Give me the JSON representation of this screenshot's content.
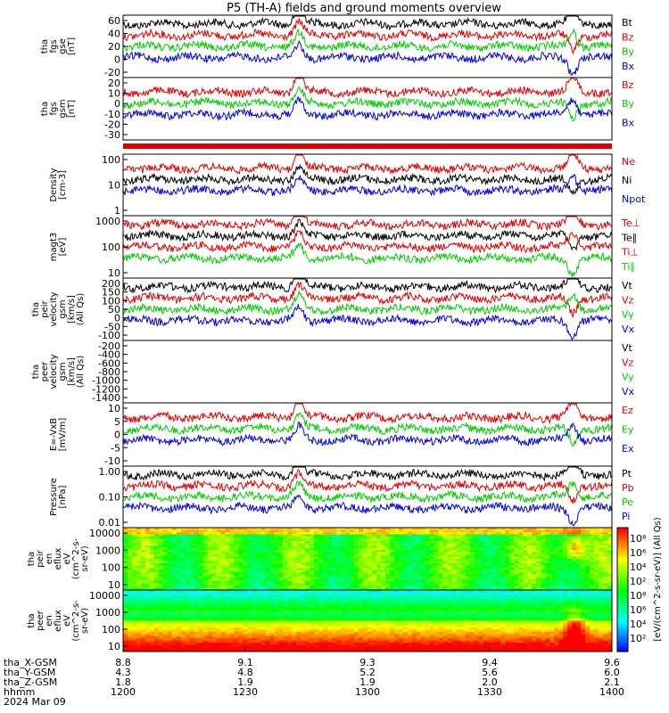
{
  "title": "P5 (TH-A) fields and ground moments overview",
  "colors": {
    "black": "#000000",
    "red": "#e00000",
    "green": "#00cc00",
    "blue": "#0000e0"
  },
  "panels": [
    {
      "name": "fgs-gse",
      "ylabel": [
        "tha",
        "fgs",
        "gse",
        "[nT]"
      ],
      "yticks": [
        "60",
        "40",
        "20",
        "0",
        "-20"
      ],
      "ylim": [
        -25,
        75
      ],
      "legend": [
        {
          "text": "Bt",
          "color": "black"
        },
        {
          "text": "Bz",
          "color": "red"
        },
        {
          "text": "By",
          "color": "green"
        },
        {
          "text": "Bx",
          "color": "blue"
        }
      ]
    },
    {
      "name": "fgs-gsm",
      "ylabel": [
        "tha",
        "fgs",
        "gsm",
        "[nT]"
      ],
      "yticks": [
        "20",
        "10",
        "0",
        "-10",
        "-20",
        "-30"
      ],
      "ylim": [
        -35,
        30
      ],
      "legend": [
        {
          "text": "Bz",
          "color": "red"
        },
        {
          "text": "By",
          "color": "green"
        },
        {
          "text": "Bx",
          "color": "blue"
        }
      ]
    },
    {
      "name": "density",
      "ylabel": [
        "Density",
        "[cm-3]"
      ],
      "yticks": [
        "100",
        "10",
        "1"
      ],
      "scale": "log",
      "legend": [
        {
          "text": "Ne",
          "color": "red"
        },
        {
          "text": "Ni",
          "color": "black"
        },
        {
          "text": "Npot",
          "color": "blue"
        }
      ]
    },
    {
      "name": "temperature",
      "ylabel": [
        "magt3",
        "[eV]"
      ],
      "yticks": [
        "1000",
        "100",
        "10"
      ],
      "scale": "log",
      "legend": [
        {
          "text": "Te⊥",
          "color": "red"
        },
        {
          "text": "Te∥",
          "color": "black"
        },
        {
          "text": "Ti⊥",
          "color": "red"
        },
        {
          "text": "Ti∥",
          "color": "green"
        }
      ]
    },
    {
      "name": "peir-velocity",
      "ylabel": [
        "tha",
        "peir",
        "velocity",
        "gsm",
        "[km/s]",
        "(All Qs)"
      ],
      "yticks": [
        "200",
        "150",
        "100",
        "50",
        "0",
        "-50",
        "-100"
      ],
      "ylim": [
        -120,
        200
      ],
      "legend": [
        {
          "text": "Vt",
          "color": "black"
        },
        {
          "text": "Vz",
          "color": "red"
        },
        {
          "text": "Vy",
          "color": "green"
        },
        {
          "text": "Vx",
          "color": "blue"
        }
      ]
    },
    {
      "name": "peer-velocity",
      "ylabel": [
        "tha",
        "peer",
        "velocity",
        "gsm",
        "[km/s]",
        "(All Qs)"
      ],
      "yticks": [
        "-200",
        "-400",
        "-600",
        "-800",
        "-1000",
        "-1200",
        "-1400"
      ],
      "ylim": [
        -1500,
        0
      ],
      "legend": [
        {
          "text": "Vt",
          "color": "black"
        },
        {
          "text": "Vz",
          "color": "red"
        },
        {
          "text": "Vy",
          "color": "green"
        },
        {
          "text": "Vx",
          "color": "blue"
        }
      ]
    },
    {
      "name": "efield",
      "ylabel": [
        "E=-VxB",
        "[mV/m]"
      ],
      "yticks": [
        "10",
        "5",
        "0",
        "-5",
        "-10"
      ],
      "ylim": [
        -13,
        13
      ],
      "legend": [
        {
          "text": "Ez",
          "color": "red"
        },
        {
          "text": "Ey",
          "color": "green"
        },
        {
          "text": "Ex",
          "color": "blue"
        }
      ]
    },
    {
      "name": "pressure",
      "ylabel": [
        "Pressure",
        "[nPa]"
      ],
      "yticks": [
        "1.00",
        "0.10",
        "0.01"
      ],
      "scale": "log",
      "legend": [
        {
          "text": "Pt",
          "color": "black"
        },
        {
          "text": "Pb",
          "color": "red"
        },
        {
          "text": "Pe",
          "color": "green"
        },
        {
          "text": "Pi",
          "color": "blue"
        }
      ]
    },
    {
      "name": "peir-spec",
      "ylabel": [
        "tha",
        "peir",
        "en",
        "eflux",
        "eV",
        "(cm^2-s-",
        "sr-eV)"
      ],
      "yticks": [
        "10000",
        "1000",
        "100",
        "10"
      ],
      "scale": "log"
    },
    {
      "name": "peer-spec",
      "ylabel": [
        "tha",
        "peer",
        "en",
        "eflux",
        "eV",
        "(cm^2-s-",
        "sr-eV)"
      ],
      "yticks": [
        "10000",
        "1000",
        "100",
        "10"
      ],
      "scale": "log"
    }
  ],
  "colorbar": {
    "ticks": [
      "10⁸",
      "10⁶",
      "10⁴",
      "10²",
      "10⁸",
      "10⁶",
      "10⁴",
      "10²"
    ],
    "label": "[eV/(cm^2-s-sr-eV)] (All Qs)"
  },
  "xaxis": {
    "ticks": [
      {
        "x": "8.8",
        "y": "4.3",
        "z": "1.8",
        "t": "1200"
      },
      {
        "x": "9.1",
        "y": "4.8",
        "z": "1.9",
        "t": "1230"
      },
      {
        "x": "9.3",
        "y": "5.2",
        "z": "1.9",
        "t": "1300"
      },
      {
        "x": "9.4",
        "y": "5.6",
        "z": "2.0",
        "t": "1330"
      },
      {
        "x": "9.6",
        "y": "6.0",
        "z": "2.1",
        "t": "1400"
      }
    ],
    "rowlabels": [
      "tha_X-GSM",
      "tha_Y-GSM",
      "tha_Z-GSM",
      "hhmm"
    ],
    "date": "2024 Mar 09"
  }
}
